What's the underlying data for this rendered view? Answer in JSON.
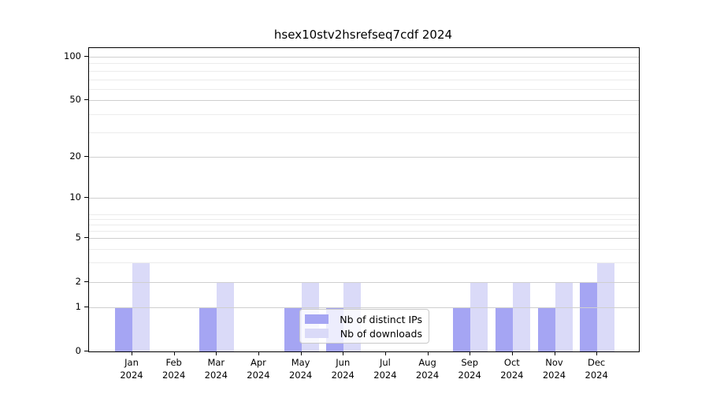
{
  "chart_data": {
    "type": "bar",
    "title": "hsex10stv2hsrefseq7cdf 2024",
    "year": "2024",
    "categories": [
      "Jan",
      "Feb",
      "Mar",
      "Apr",
      "May",
      "Jun",
      "Jul",
      "Aug",
      "Sep",
      "Oct",
      "Nov",
      "Dec"
    ],
    "series": [
      {
        "name": "Nb of distinct IPs",
        "color": "#a5a5f3",
        "values": [
          1,
          0,
          1,
          0,
          1,
          1,
          0,
          0,
          1,
          1,
          1,
          2
        ]
      },
      {
        "name": "Nb of downloads",
        "color": "#dadaf8",
        "values": [
          3,
          0,
          2,
          0,
          2,
          2,
          0,
          0,
          2,
          2,
          2,
          3
        ]
      }
    ],
    "yticks": [
      0,
      1,
      2,
      5,
      10,
      20,
      50,
      100
    ],
    "ylabel": "",
    "xlabel": "",
    "yscale": "log-like",
    "ylim": [
      0,
      100
    ],
    "grid": true,
    "legend_position": "inside-bottom-center"
  }
}
